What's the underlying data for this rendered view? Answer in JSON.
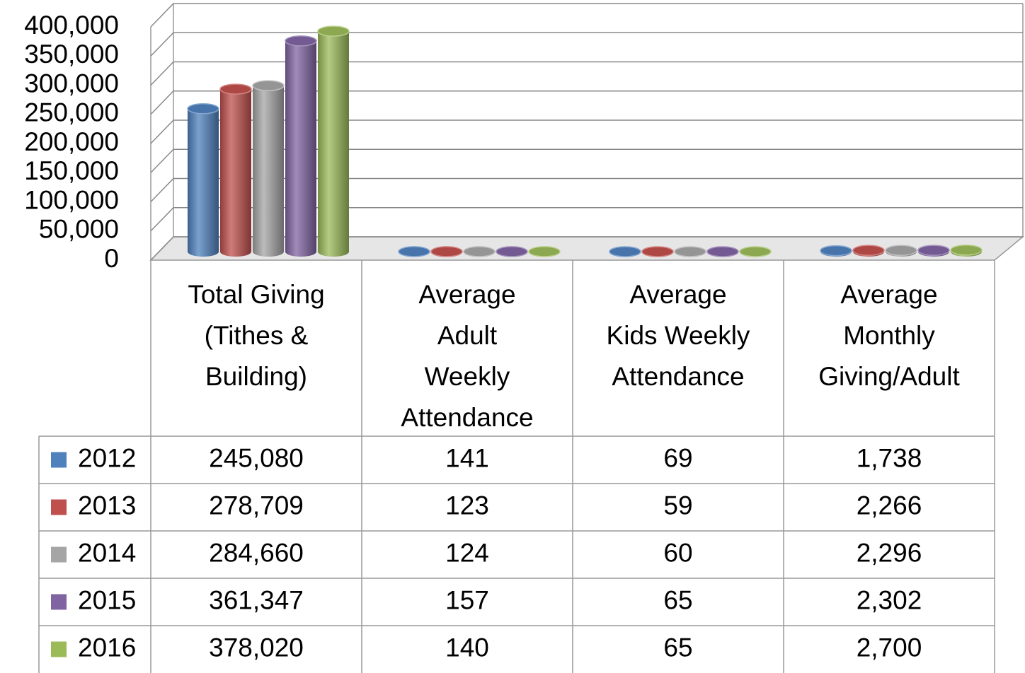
{
  "chart_data": {
    "type": "bar3d",
    "categories": [
      "Total Giving\n(Tithes &\nBuilding)",
      "Average\nAdult\nWeekly\nAttendance",
      "Average\nKids Weekly\nAttendance",
      "Average\nMonthly\nGiving/Adult"
    ],
    "series": [
      {
        "name": "2012",
        "color": "#4f81bd",
        "values": [
          245080,
          141,
          69,
          1738
        ],
        "value_labels": [
          "245,080",
          "141",
          "69",
          "1,738"
        ]
      },
      {
        "name": "2013",
        "color": "#c0504d",
        "values": [
          278709,
          123,
          59,
          2266
        ],
        "value_labels": [
          "278,709",
          "123",
          "59",
          "2,266"
        ]
      },
      {
        "name": "2014",
        "color": "#a5a5a5",
        "values": [
          284660,
          124,
          60,
          2296
        ],
        "value_labels": [
          "284,660",
          "124",
          "60",
          "2,296"
        ]
      },
      {
        "name": "2015",
        "color": "#8064a2",
        "values": [
          361347,
          157,
          65,
          2302
        ],
        "value_labels": [
          "361,347",
          "157",
          "65",
          "2,302"
        ]
      },
      {
        "name": "2016",
        "color": "#9bbb59",
        "values": [
          378020,
          140,
          65,
          2700
        ],
        "value_labels": [
          "378,020",
          "140",
          "65",
          "2,700"
        ]
      }
    ],
    "ylim": [
      0,
      400000
    ],
    "yticks": [
      0,
      {
        "value": 50000,
        "label": "50,000"
      },
      {
        "value": 100000,
        "label": "100,000"
      },
      {
        "value": 150000,
        "label": "150,000"
      },
      {
        "value": 200000,
        "label": "200,000"
      },
      {
        "value": 250000,
        "label": "250,000"
      },
      {
        "value": 300000,
        "label": "300,000"
      },
      {
        "value": 350000,
        "label": "350,000"
      },
      {
        "value": 400000,
        "label": "400,000"
      }
    ],
    "grid": true
  }
}
